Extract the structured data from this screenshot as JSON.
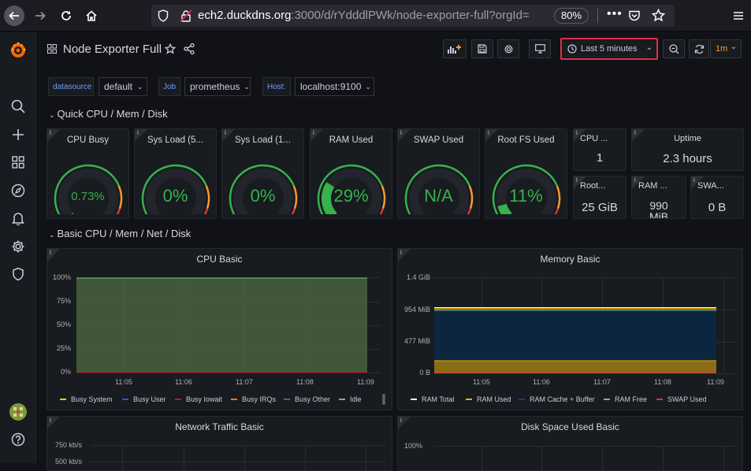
{
  "browser": {
    "url_host": "ech2.duckdns.org",
    "url_rest": ":3000/d/rYdddlPWk/node-exporter-full?orgId=",
    "zoom": "80%",
    "icons": [
      "back-arrow-icon",
      "forward-arrow-icon",
      "reload-icon",
      "home-icon",
      "shield-icon",
      "lock-icon",
      "more-icon",
      "pocket-icon",
      "star-icon",
      "menu-icon"
    ]
  },
  "dashboard": {
    "title": "Node Exporter Full",
    "time_range": "Last 5 minutes",
    "refresh": "1m"
  },
  "variables": [
    {
      "label": "datasource",
      "value": "default"
    },
    {
      "label": "Job",
      "value": "prometheus"
    },
    {
      "label": "Host:",
      "value": "localhost:9100"
    }
  ],
  "rows": {
    "quick": "Quick CPU / Mem / Disk",
    "basic": "Basic CPU / Mem / Net / Disk"
  },
  "gauges": [
    {
      "title": "CPU Busy",
      "value": "0.73%",
      "fill": 0.0073
    },
    {
      "title": "Sys Load (5...",
      "value": "0%",
      "fill": 0
    },
    {
      "title": "Sys Load (1...",
      "value": "0%",
      "fill": 0
    },
    {
      "title": "RAM Used",
      "value": "29%",
      "fill": 0.29
    },
    {
      "title": "SWAP Used",
      "value": "N/A",
      "fill": 0
    },
    {
      "title": "Root FS Used",
      "value": "11%",
      "fill": 0.11
    }
  ],
  "stats": {
    "cpu_cores": {
      "title": "CPU ...",
      "value": "1"
    },
    "uptime": {
      "title": "Uptime",
      "value": "2.3 hours"
    },
    "rootfs": {
      "title": "Root...",
      "value": "25 GiB"
    },
    "ram": {
      "title": "RAM ...",
      "value": "990 MiB"
    },
    "swap": {
      "title": "SWA...",
      "value": "0 B"
    }
  },
  "cpu_basic": {
    "title": "CPU Basic",
    "y_ticks": [
      "100%",
      "75%",
      "50%",
      "25%",
      "0%"
    ],
    "x_ticks": [
      "11:05",
      "11:06",
      "11:07",
      "11:08",
      "11:09"
    ],
    "legend": [
      {
        "name": "Busy System",
        "color": "#f2cc0c"
      },
      {
        "name": "Busy User",
        "color": "#1f60c4"
      },
      {
        "name": "Busy Iowait",
        "color": "#c4162a"
      },
      {
        "name": "Busy IRQs",
        "color": "#ff780a"
      },
      {
        "name": "Busy Other",
        "color": "#8f3bb8"
      },
      {
        "name": "Idle",
        "color": "#73bf69"
      }
    ]
  },
  "memory_basic": {
    "title": "Memory Basic",
    "y_ticks": [
      "1.4 GiB",
      "954 MiB",
      "477 MiB",
      "0 B"
    ],
    "x_ticks": [
      "11:05",
      "11:06",
      "11:07",
      "11:08",
      "11:09"
    ],
    "legend": [
      {
        "name": "RAM Total",
        "color": "#ffffff"
      },
      {
        "name": "RAM Used",
        "color": "#e0b400"
      },
      {
        "name": "RAM Cache + Buffer",
        "color": "#0a437c"
      },
      {
        "name": "RAM Free",
        "color": "#73bf69"
      },
      {
        "name": "SWAP Used",
        "color": "#e02f44"
      }
    ]
  },
  "network_basic": {
    "title": "Network Traffic Basic",
    "y_ticks": [
      "750 kb/s",
      "500 kb/s"
    ]
  },
  "disk_basic": {
    "title": "Disk Space Used Basic",
    "y_ticks": [
      "100%"
    ]
  },
  "colors": {
    "background": "#111217",
    "panel": "#181b1f",
    "green": "#37b24d",
    "highlight": "#e02f44"
  }
}
